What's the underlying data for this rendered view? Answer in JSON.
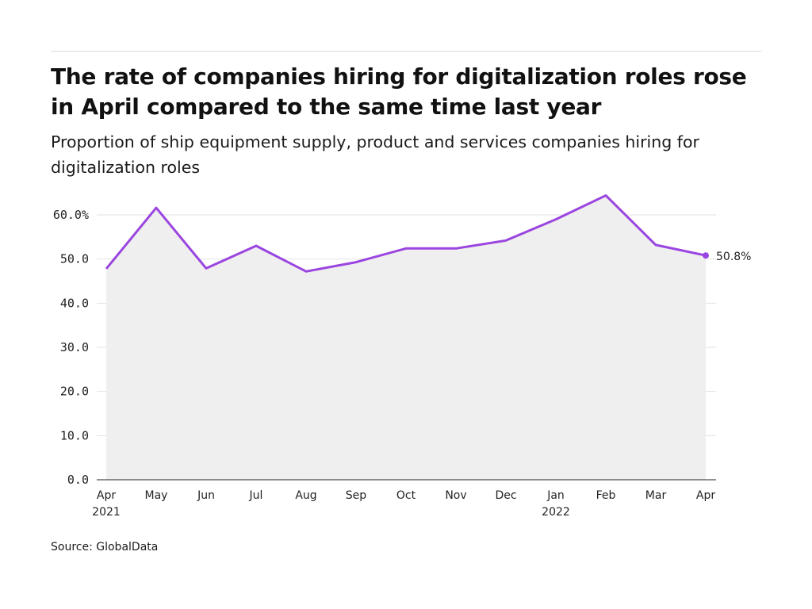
{
  "title": "The rate of companies hiring for digitalization roles rose in April compared to the same time last year",
  "subtitle": "Proportion of ship equipment supply, product and services companies hiring for digitalization roles",
  "source": "Source: GlobalData",
  "colors": {
    "line": "#9b45e0",
    "area": "#efefef",
    "grid": "#e2e2e2",
    "axis": "#222222"
  },
  "chart_data": {
    "type": "area",
    "x": [
      "Apr",
      "May",
      "Jun",
      "Jul",
      "Aug",
      "Sep",
      "Oct",
      "Nov",
      "Dec",
      "Jan",
      "Feb",
      "Mar",
      "Apr"
    ],
    "year_labels": [
      "2021",
      "",
      "",
      "",
      "",
      "",
      "",
      "",
      "",
      "2022",
      "",
      "",
      ""
    ],
    "series": [
      {
        "values": [
          47.8,
          61.6,
          47.9,
          53.0,
          47.2,
          49.3,
          52.4,
          52.4,
          54.2,
          59.0,
          64.4,
          53.2,
          50.8
        ]
      }
    ],
    "ylim": [
      0,
      65
    ],
    "yticks": [
      "0.0",
      "10.0",
      "20.0",
      "30.0",
      "40.0",
      "50.0",
      "60.0%"
    ],
    "ytick_values": [
      0,
      10,
      20,
      30,
      40,
      50,
      60
    ],
    "end_label": "50.8%",
    "grid": true,
    "xlabel": "",
    "ylabel": ""
  }
}
